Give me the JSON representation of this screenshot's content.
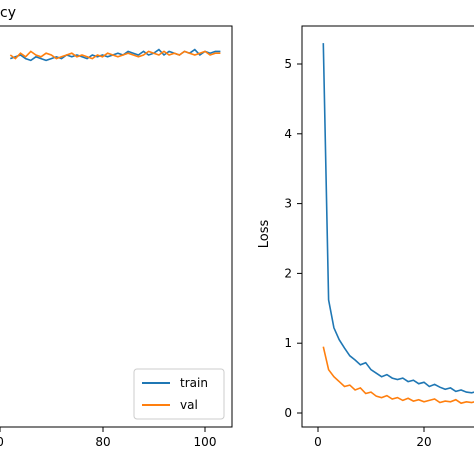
{
  "chart_data": [
    {
      "type": "line",
      "title": "Accuracy",
      "title_visible": "cy",
      "xlabel": "",
      "ylabel": "",
      "xticks_visible": [
        "0",
        "80",
        "100"
      ],
      "legend": {
        "placement": "bottom-right",
        "entries": [
          "train",
          "val"
        ]
      },
      "grid": false,
      "series": [
        {
          "name": "train",
          "color": "#1f77b4",
          "x": [
            62,
            63,
            64,
            65,
            66,
            67,
            68,
            69,
            70,
            71,
            72,
            73,
            74,
            75,
            76,
            77,
            78,
            79,
            80,
            81,
            82,
            83,
            84,
            85,
            86,
            87,
            88,
            89,
            90,
            91,
            92,
            93,
            94,
            95,
            96,
            97,
            98,
            99,
            100,
            101,
            102,
            103
          ],
          "y": [
            0.91,
            0.92,
            0.93,
            0.91,
            0.9,
            0.92,
            0.91,
            0.9,
            0.91,
            0.92,
            0.91,
            0.93,
            0.92,
            0.93,
            0.92,
            0.91,
            0.93,
            0.92,
            0.93,
            0.92,
            0.93,
            0.94,
            0.93,
            0.95,
            0.94,
            0.93,
            0.95,
            0.93,
            0.94,
            0.96,
            0.93,
            0.95,
            0.94,
            0.93,
            0.95,
            0.94,
            0.96,
            0.93,
            0.95,
            0.94,
            0.95,
            0.95
          ]
        },
        {
          "name": "val",
          "color": "#ff7f0e",
          "x": [
            62,
            63,
            64,
            65,
            66,
            67,
            68,
            69,
            70,
            71,
            72,
            73,
            74,
            75,
            76,
            77,
            78,
            79,
            80,
            81,
            82,
            83,
            84,
            85,
            86,
            87,
            88,
            89,
            90,
            91,
            92,
            93,
            94,
            95,
            96,
            97,
            98,
            99,
            100,
            101,
            102,
            103
          ],
          "y": [
            0.93,
            0.91,
            0.94,
            0.92,
            0.95,
            0.93,
            0.92,
            0.94,
            0.93,
            0.91,
            0.92,
            0.93,
            0.94,
            0.92,
            0.93,
            0.92,
            0.91,
            0.93,
            0.92,
            0.94,
            0.93,
            0.92,
            0.93,
            0.94,
            0.93,
            0.92,
            0.93,
            0.95,
            0.94,
            0.93,
            0.95,
            0.93,
            0.94,
            0.93,
            0.95,
            0.94,
            0.93,
            0.94,
            0.95,
            0.93,
            0.94,
            0.94
          ]
        }
      ]
    },
    {
      "type": "line",
      "title": "",
      "xlabel": "",
      "ylabel": "Loss",
      "xticks": [
        0,
        20
      ],
      "yticks": [
        0,
        1,
        2,
        3,
        4,
        5
      ],
      "ylim": [
        -0.15,
        5.55
      ],
      "grid": false,
      "series": [
        {
          "name": "train",
          "color": "#1f77b4",
          "x": [
            1,
            2,
            3,
            4,
            5,
            6,
            7,
            8,
            9,
            10,
            11,
            12,
            13,
            14,
            15,
            16,
            17,
            18,
            19,
            20,
            21,
            22,
            23,
            24,
            25,
            26,
            27,
            28,
            29,
            30,
            31,
            32,
            33
          ],
          "y": [
            5.3,
            1.62,
            1.22,
            1.05,
            0.93,
            0.82,
            0.76,
            0.69,
            0.72,
            0.62,
            0.57,
            0.52,
            0.55,
            0.5,
            0.48,
            0.5,
            0.45,
            0.47,
            0.42,
            0.44,
            0.38,
            0.41,
            0.37,
            0.34,
            0.36,
            0.31,
            0.33,
            0.3,
            0.29,
            0.31,
            0.27,
            0.29,
            0.28
          ]
        },
        {
          "name": "val",
          "color": "#ff7f0e",
          "x": [
            1,
            2,
            3,
            4,
            5,
            6,
            7,
            8,
            9,
            10,
            11,
            12,
            13,
            14,
            15,
            16,
            17,
            18,
            19,
            20,
            21,
            22,
            23,
            24,
            25,
            26,
            27,
            28,
            29,
            30,
            31,
            32,
            33
          ],
          "y": [
            0.95,
            0.62,
            0.52,
            0.45,
            0.38,
            0.4,
            0.33,
            0.36,
            0.28,
            0.3,
            0.24,
            0.22,
            0.25,
            0.2,
            0.22,
            0.18,
            0.21,
            0.17,
            0.19,
            0.16,
            0.18,
            0.2,
            0.15,
            0.17,
            0.16,
            0.19,
            0.14,
            0.16,
            0.15,
            0.17,
            0.13,
            0.2,
            0.15
          ]
        }
      ]
    }
  ]
}
